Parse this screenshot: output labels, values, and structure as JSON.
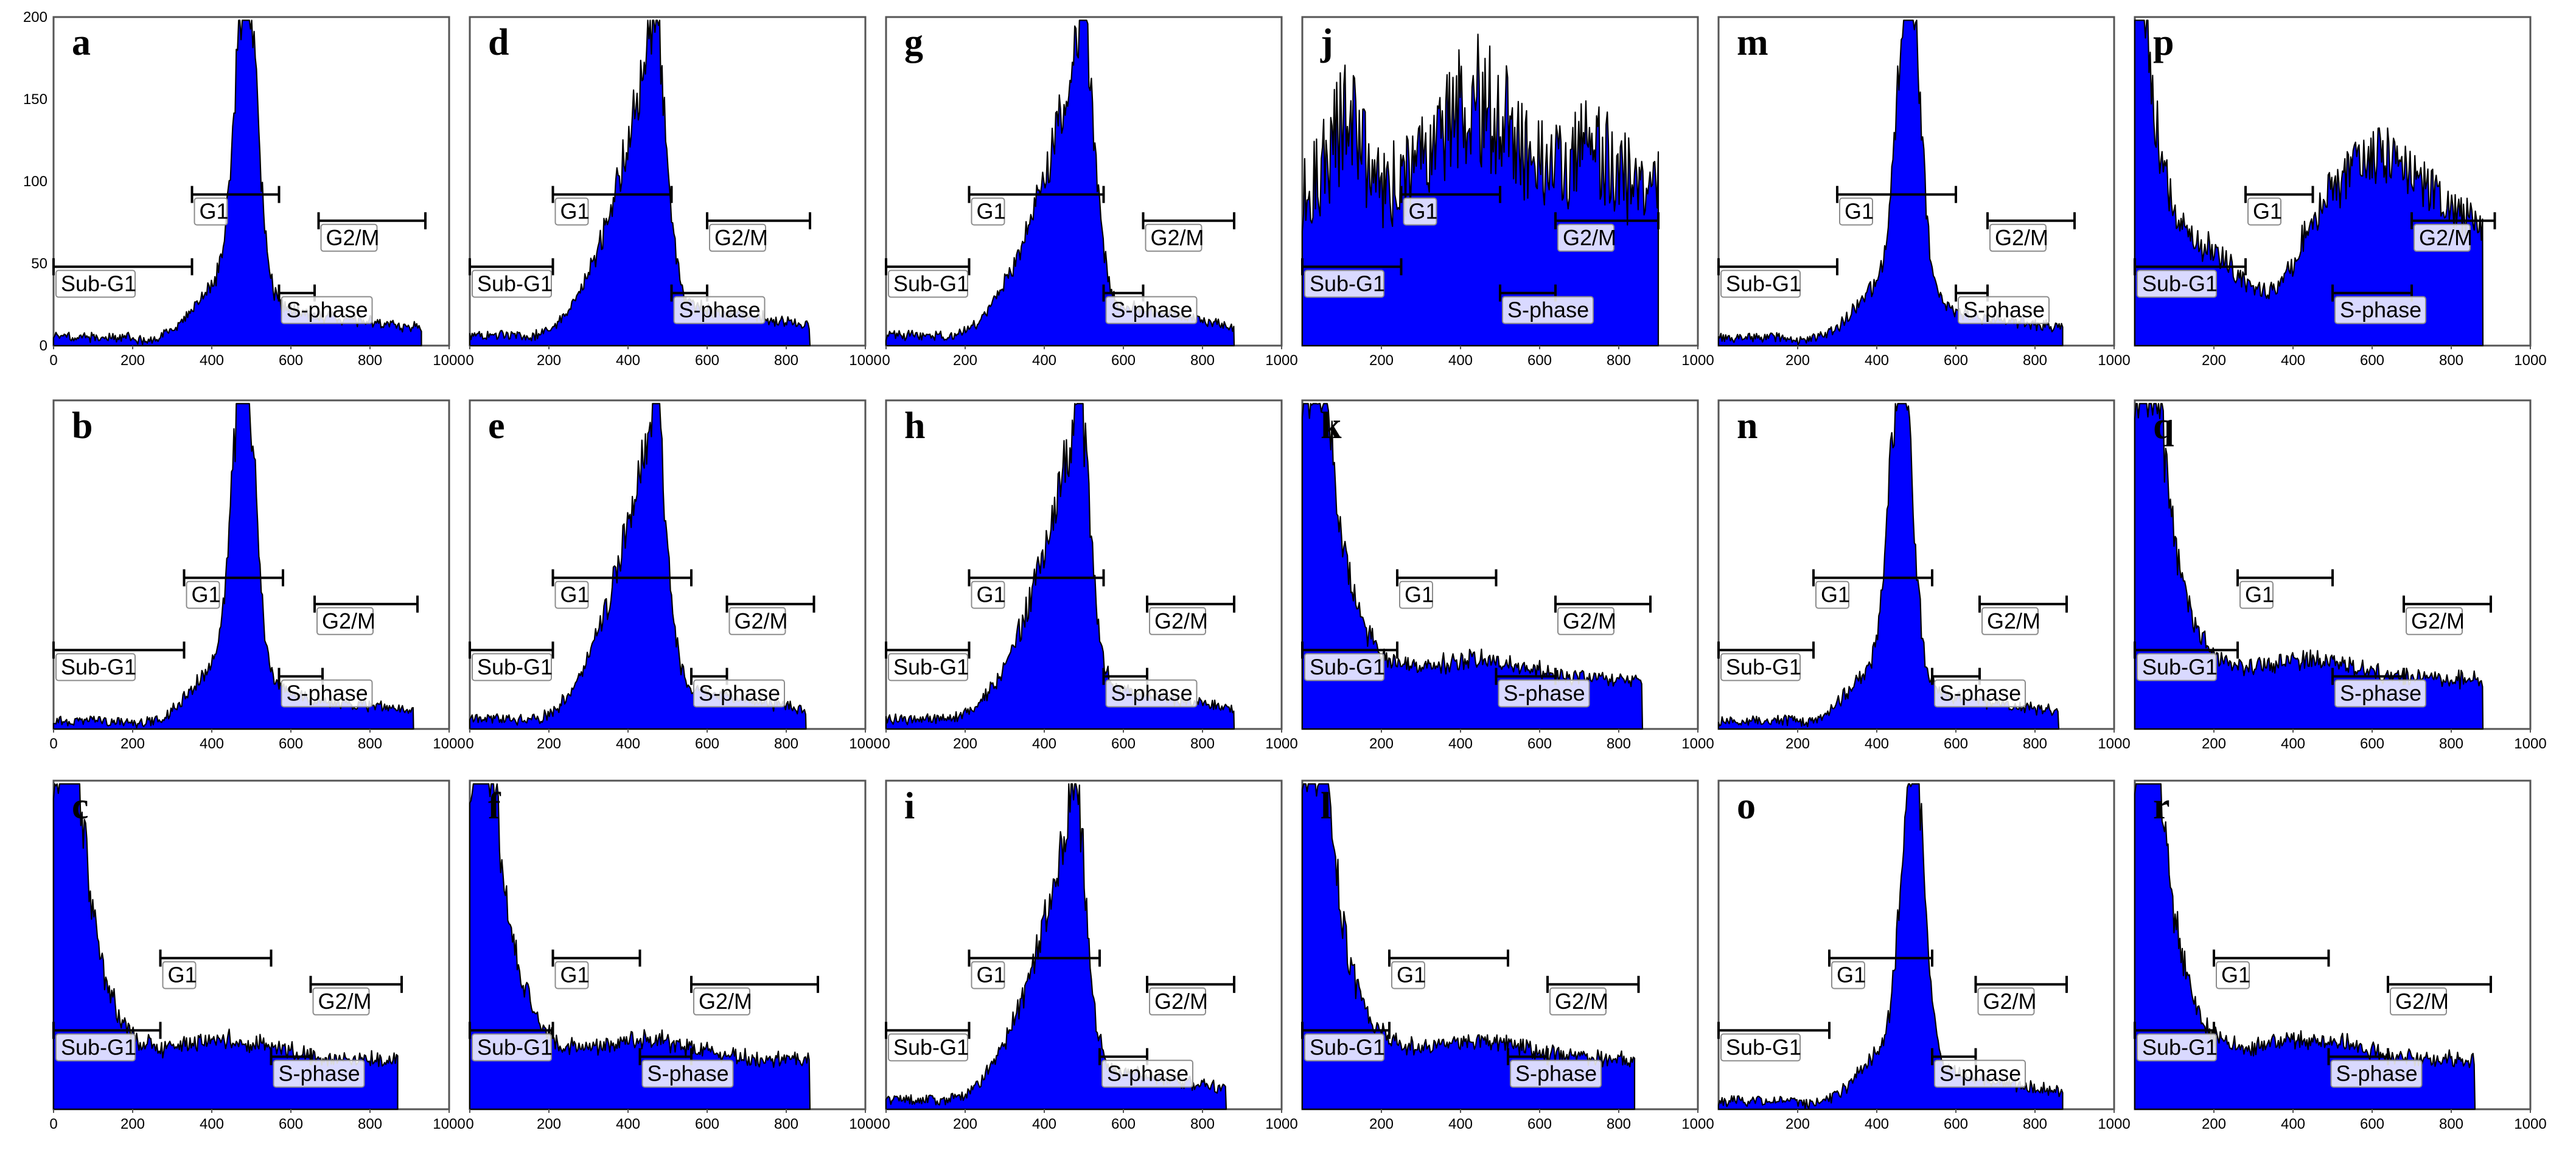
{
  "figure": {
    "description_free": true
  },
  "chart_data": [
    {
      "panel": "a",
      "type": "histogram",
      "xlim": [
        0,
        1000
      ],
      "ylim": [
        0,
        200
      ],
      "xticks": [
        0,
        200,
        400,
        600,
        800,
        1000
      ],
      "yticks": [
        0,
        50,
        100,
        150,
        200
      ],
      "profile": "g1peak",
      "peak": 485,
      "end": 930,
      "peak_height": 190,
      "gates": [
        {
          "name": "Sub-G1",
          "start": 0,
          "end": 350
        },
        {
          "name": "G1",
          "start": 350,
          "end": 570
        },
        {
          "name": "S-phase",
          "start": 570,
          "end": 660
        },
        {
          "name": "G2/M",
          "start": 670,
          "end": 940
        }
      ]
    },
    {
      "panel": "b",
      "type": "histogram",
      "xlim": [
        0,
        1000
      ],
      "ylim": [
        0,
        200
      ],
      "xticks": [
        0,
        200,
        400,
        600,
        800,
        1000
      ],
      "profile": "g1peak",
      "peak": 480,
      "end": 910,
      "peak_height": 195,
      "gates": [
        {
          "name": "Sub-G1",
          "start": 0,
          "end": 330
        },
        {
          "name": "G1",
          "start": 330,
          "end": 580
        },
        {
          "name": "S-phase",
          "start": 570,
          "end": 680
        },
        {
          "name": "G2/M",
          "start": 660,
          "end": 920
        }
      ]
    },
    {
      "panel": "c",
      "type": "histogram",
      "xlim": [
        0,
        1000
      ],
      "ylim": [
        0,
        200
      ],
      "xticks": [
        0,
        200,
        400,
        600,
        800,
        1000
      ],
      "profile": "debris",
      "end": 870,
      "peak_height": 185,
      "gates": [
        {
          "name": "Sub-G1",
          "start": 0,
          "end": 270
        },
        {
          "name": "G1",
          "start": 270,
          "end": 550
        },
        {
          "name": "S-phase",
          "start": 550,
          "end": 650
        },
        {
          "name": "G2/M",
          "start": 650,
          "end": 880
        }
      ]
    },
    {
      "panel": "d",
      "type": "histogram",
      "xlim": [
        0,
        1000
      ],
      "ylim": [
        0,
        200
      ],
      "xticks": [
        0,
        200,
        400,
        600,
        800,
        1000
      ],
      "profile": "broadg1",
      "peak": 460,
      "end": 860,
      "peak_height": 190,
      "gates": [
        {
          "name": "Sub-G1",
          "start": 0,
          "end": 210
        },
        {
          "name": "G1",
          "start": 210,
          "end": 510
        },
        {
          "name": "S-phase",
          "start": 510,
          "end": 600
        },
        {
          "name": "G2/M",
          "start": 600,
          "end": 860
        }
      ]
    },
    {
      "panel": "e",
      "type": "histogram",
      "xlim": [
        0,
        1000
      ],
      "ylim": [
        0,
        200
      ],
      "xticks": [
        0,
        200,
        400,
        600,
        800,
        1000
      ],
      "profile": "broadg1",
      "peak": 460,
      "end": 850,
      "peak_height": 190,
      "gates": [
        {
          "name": "Sub-G1",
          "start": 0,
          "end": 210
        },
        {
          "name": "G1",
          "start": 210,
          "end": 560
        },
        {
          "name": "S-phase",
          "start": 560,
          "end": 650
        },
        {
          "name": "G2/M",
          "start": 650,
          "end": 870
        }
      ]
    },
    {
      "panel": "f",
      "type": "histogram",
      "xlim": [
        0,
        1000
      ],
      "ylim": [
        0,
        200
      ],
      "xticks": [
        0,
        200,
        400,
        600,
        800,
        1000
      ],
      "profile": "debris",
      "end": 860,
      "peak_height": 180,
      "gates": [
        {
          "name": "Sub-G1",
          "start": 0,
          "end": 210
        },
        {
          "name": "G1",
          "start": 210,
          "end": 430
        },
        {
          "name": "S-phase",
          "start": 430,
          "end": 560
        },
        {
          "name": "G2/M",
          "start": 560,
          "end": 880
        }
      ]
    },
    {
      "panel": "g",
      "type": "histogram",
      "xlim": [
        0,
        1000
      ],
      "ylim": [
        0,
        200
      ],
      "xticks": [
        0,
        200,
        400,
        600,
        800,
        1000
      ],
      "profile": "broadg1",
      "peak": 490,
      "end": 880,
      "peak_height": 190,
      "gates": [
        {
          "name": "Sub-G1",
          "start": 0,
          "end": 210
        },
        {
          "name": "G1",
          "start": 210,
          "end": 550
        },
        {
          "name": "S-phase",
          "start": 550,
          "end": 650
        },
        {
          "name": "G2/M",
          "start": 650,
          "end": 880
        }
      ]
    },
    {
      "panel": "h",
      "type": "histogram",
      "xlim": [
        0,
        1000
      ],
      "ylim": [
        0,
        200
      ],
      "xticks": [
        0,
        200,
        400,
        600,
        800,
        1000
      ],
      "profile": "broadg1",
      "peak": 480,
      "end": 880,
      "peak_height": 190,
      "gates": [
        {
          "name": "Sub-G1",
          "start": 0,
          "end": 210
        },
        {
          "name": "G1",
          "start": 210,
          "end": 550
        },
        {
          "name": "S-phase",
          "start": 550,
          "end": 660
        },
        {
          "name": "G2/M",
          "start": 660,
          "end": 880
        }
      ]
    },
    {
      "panel": "i",
      "type": "histogram",
      "xlim": [
        0,
        1000
      ],
      "ylim": [
        0,
        200
      ],
      "xticks": [
        0,
        200,
        400,
        600,
        800,
        1000
      ],
      "profile": "broadg1",
      "peak": 470,
      "end": 860,
      "peak_height": 185,
      "gates": [
        {
          "name": "Sub-G1",
          "start": 0,
          "end": 210
        },
        {
          "name": "G1",
          "start": 210,
          "end": 540
        },
        {
          "name": "S-phase",
          "start": 540,
          "end": 660
        },
        {
          "name": "G2/M",
          "start": 660,
          "end": 880
        }
      ]
    },
    {
      "panel": "j",
      "type": "histogram",
      "xlim": [
        0,
        1000
      ],
      "ylim": [
        0,
        200
      ],
      "xticks": [
        200,
        400,
        600,
        800,
        1000
      ],
      "profile": "noisy",
      "end": 900,
      "peak_height": 190,
      "gates": [
        {
          "name": "Sub-G1",
          "start": 0,
          "end": 250
        },
        {
          "name": "G1",
          "start": 250,
          "end": 500
        },
        {
          "name": "S-phase",
          "start": 500,
          "end": 640
        },
        {
          "name": "G2/M",
          "start": 640,
          "end": 900
        }
      ]
    },
    {
      "panel": "k",
      "type": "histogram",
      "xlim": [
        0,
        1000
      ],
      "ylim": [
        0,
        200
      ],
      "xticks": [
        200,
        400,
        600,
        800,
        1000
      ],
      "profile": "debris",
      "end": 860,
      "peak_height": 185,
      "gates": [
        {
          "name": "Sub-G1",
          "start": 0,
          "end": 240
        },
        {
          "name": "G1",
          "start": 240,
          "end": 490
        },
        {
          "name": "S-phase",
          "start": 490,
          "end": 640
        },
        {
          "name": "G2/M",
          "start": 640,
          "end": 880
        }
      ]
    },
    {
      "panel": "l",
      "type": "histogram",
      "xlim": [
        0,
        1000
      ],
      "ylim": [
        0,
        200
      ],
      "xticks": [
        200,
        400,
        600,
        800,
        1000
      ],
      "profile": "debris",
      "end": 840,
      "peak_height": 185,
      "gates": [
        {
          "name": "Sub-G1",
          "start": 0,
          "end": 220
        },
        {
          "name": "G1",
          "start": 220,
          "end": 520
        },
        {
          "name": "S-phase",
          "start": 520,
          "end": 620
        },
        {
          "name": "G2/M",
          "start": 620,
          "end": 850
        }
      ]
    },
    {
      "panel": "m",
      "type": "histogram",
      "xlim": [
        0,
        1000
      ],
      "ylim": [
        0,
        200
      ],
      "xticks": [
        200,
        400,
        600,
        800,
        1000
      ],
      "profile": "g1peak",
      "peak": 480,
      "end": 870,
      "peak_height": 195,
      "gates": [
        {
          "name": "Sub-G1",
          "start": 0,
          "end": 300
        },
        {
          "name": "G1",
          "start": 300,
          "end": 600
        },
        {
          "name": "S-phase",
          "start": 600,
          "end": 680
        },
        {
          "name": "G2/M",
          "start": 680,
          "end": 900
        }
      ]
    },
    {
      "panel": "n",
      "type": "histogram",
      "xlim": [
        0,
        1000
      ],
      "ylim": [
        0,
        200
      ],
      "xticks": [
        200,
        400,
        600,
        800,
        1000
      ],
      "profile": "g1peak",
      "peak": 460,
      "end": 860,
      "peak_height": 190,
      "gates": [
        {
          "name": "Sub-G1",
          "start": 0,
          "end": 240
        },
        {
          "name": "G1",
          "start": 240,
          "end": 540
        },
        {
          "name": "S-phase",
          "start": 540,
          "end": 660
        },
        {
          "name": "G2/M",
          "start": 660,
          "end": 880
        }
      ]
    },
    {
      "panel": "o",
      "type": "histogram",
      "xlim": [
        0,
        1000
      ],
      "ylim": [
        0,
        200
      ],
      "xticks": [
        200,
        400,
        600,
        800,
        1000
      ],
      "profile": "g1peak",
      "peak": 490,
      "end": 870,
      "peak_height": 190,
      "gates": [
        {
          "name": "Sub-G1",
          "start": 0,
          "end": 280
        },
        {
          "name": "G1",
          "start": 280,
          "end": 540
        },
        {
          "name": "S-phase",
          "start": 540,
          "end": 650
        },
        {
          "name": "G2/M",
          "start": 650,
          "end": 880
        }
      ]
    },
    {
      "panel": "p",
      "type": "histogram",
      "xlim": [
        0,
        1000
      ],
      "ylim": [
        0,
        200
      ],
      "xticks": [
        200,
        400,
        600,
        800,
        1000
      ],
      "profile": "sphase",
      "end": 880,
      "peak_height": 190,
      "gates": [
        {
          "name": "Sub-G1",
          "start": 0,
          "end": 280
        },
        {
          "name": "G1",
          "start": 280,
          "end": 450
        },
        {
          "name": "S-phase",
          "start": 500,
          "end": 700
        },
        {
          "name": "G2/M",
          "start": 700,
          "end": 910
        }
      ]
    },
    {
      "panel": "q",
      "type": "histogram",
      "xlim": [
        0,
        1000
      ],
      "ylim": [
        0,
        200
      ],
      "xticks": [
        200,
        400,
        600,
        800,
        1000
      ],
      "profile": "debris",
      "end": 880,
      "peak_height": 180,
      "gates": [
        {
          "name": "Sub-G1",
          "start": 0,
          "end": 260
        },
        {
          "name": "G1",
          "start": 260,
          "end": 500
        },
        {
          "name": "S-phase",
          "start": 500,
          "end": 680
        },
        {
          "name": "G2/M",
          "start": 680,
          "end": 900
        }
      ]
    },
    {
      "panel": "r",
      "type": "histogram",
      "xlim": [
        0,
        1000
      ],
      "ylim": [
        0,
        200
      ],
      "xticks": [
        200,
        400,
        600,
        800,
        1000
      ],
      "profile": "debris",
      "end": 860,
      "peak_height": 185,
      "gates": [
        {
          "name": "Sub-G1",
          "start": 0,
          "end": 200
        },
        {
          "name": "G1",
          "start": 200,
          "end": 490
        },
        {
          "name": "S-phase",
          "start": 490,
          "end": 640
        },
        {
          "name": "G2/M",
          "start": 640,
          "end": 900
        }
      ]
    }
  ],
  "style": {
    "fill": "#0000ff",
    "outline": "#000000",
    "frame": "#555555",
    "gate_box_border": "#8c8c8c"
  }
}
